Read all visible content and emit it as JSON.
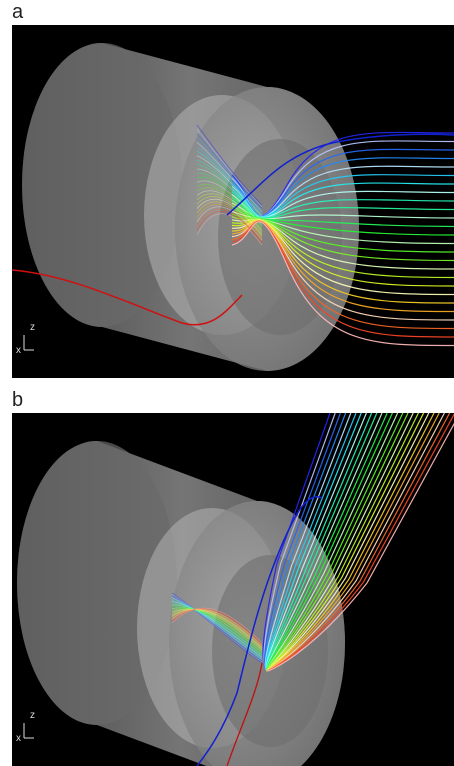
{
  "panels": [
    {
      "label": "a",
      "axes": {
        "vertical": "z",
        "horizontal": "x"
      }
    },
    {
      "label": "b",
      "axes": {
        "vertical": "z",
        "horizontal": "x"
      }
    }
  ]
}
